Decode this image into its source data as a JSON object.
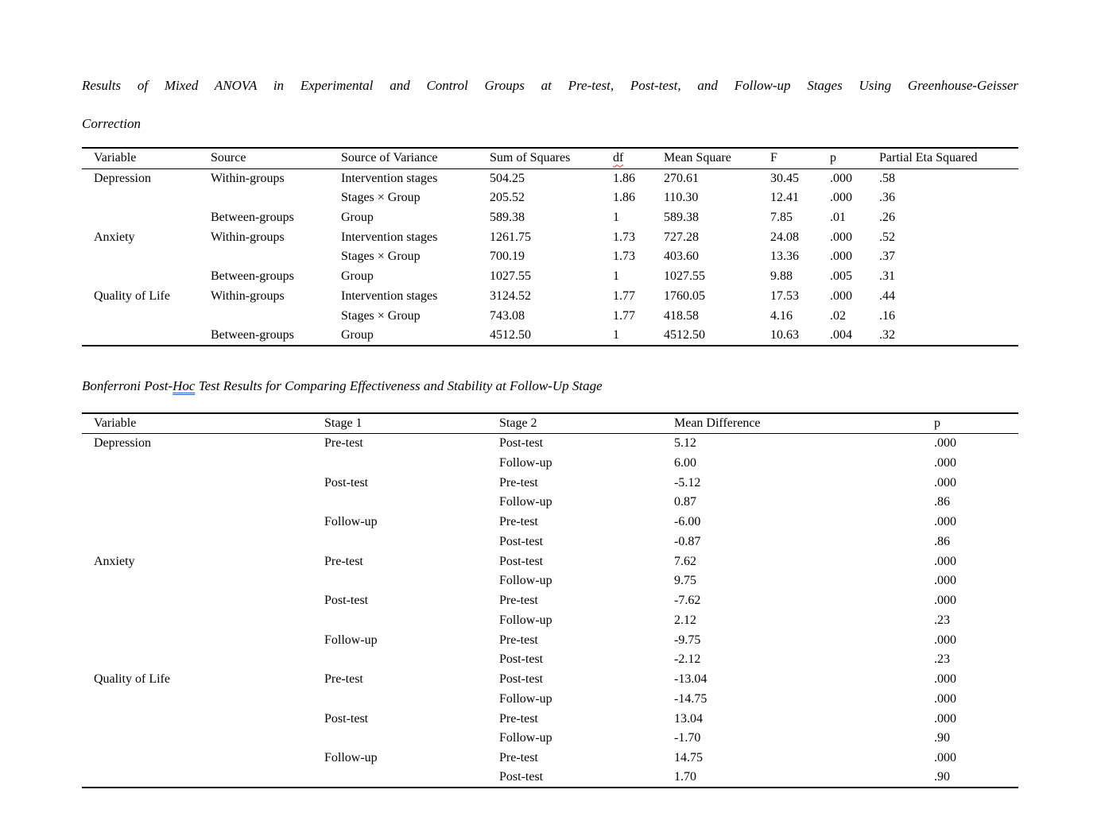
{
  "page": {
    "title_line1": "Results of Mixed ANOVA in Experimental and Control Groups at Pre-test, Post-test, and Follow-up Stages Using Greenhouse-Geisser",
    "title_line2": "Correction"
  },
  "anova_table": {
    "headers": [
      "Variable",
      "Source",
      "Source of Variance",
      "Sum of Squares",
      "df",
      "Mean Square",
      "F",
      "p",
      "Partial Eta Squared"
    ],
    "rows": [
      [
        "Depression",
        "Within-groups",
        "Intervention stages",
        "504.25",
        "1.86",
        "270.61",
        "30.45",
        ".000",
        ".58"
      ],
      [
        "",
        "",
        "Stages × Group",
        "205.52",
        "1.86",
        "110.30",
        "12.41",
        ".000",
        ".36"
      ],
      [
        "",
        "Between-groups",
        "Group",
        "589.38",
        "1",
        "589.38",
        "7.85",
        ".01",
        ".26"
      ],
      [
        "Anxiety",
        "Within-groups",
        "Intervention stages",
        "1261.75",
        "1.73",
        "727.28",
        "24.08",
        ".000",
        ".52"
      ],
      [
        "",
        "",
        "Stages × Group",
        "700.19",
        "1.73",
        "403.60",
        "13.36",
        ".000",
        ".37"
      ],
      [
        "",
        "Between-groups",
        "Group",
        "1027.55",
        "1",
        "1027.55",
        "9.88",
        ".005",
        ".31"
      ],
      [
        "Quality of Life",
        "Within-groups",
        "Intervention stages",
        "3124.52",
        "1.77",
        "1760.05",
        "17.53",
        ".000",
        ".44"
      ],
      [
        "",
        "",
        "Stages × Group",
        "743.08",
        "1.77",
        "418.58",
        "4.16",
        ".02",
        ".16"
      ],
      [
        "",
        "Between-groups",
        "Group",
        "4512.50",
        "1",
        "4512.50",
        "10.63",
        ".004",
        ".32"
      ]
    ]
  },
  "posthoc_title": {
    "prefix": "Bonferroni Post-",
    "underlined_word": "Hoc",
    "suffix": " Test Results for Comparing Effectiveness and Stability at Follow-Up Stage"
  },
  "posthoc_table": {
    "headers": [
      "Variable",
      "Stage 1",
      "Stage 2",
      "Mean Difference",
      "p"
    ],
    "rows": [
      [
        "Depression",
        "Pre-test",
        "Post-test",
        "5.12",
        ".000"
      ],
      [
        "",
        "",
        "Follow-up",
        "6.00",
        ".000"
      ],
      [
        "",
        "Post-test",
        "Pre-test",
        "-5.12",
        ".000"
      ],
      [
        "",
        "",
        "Follow-up",
        "0.87",
        ".86"
      ],
      [
        "",
        "Follow-up",
        "Pre-test",
        "-6.00",
        ".000"
      ],
      [
        "",
        "",
        "Post-test",
        "-0.87",
        ".86"
      ],
      [
        "Anxiety",
        "Pre-test",
        "Post-test",
        "7.62",
        ".000"
      ],
      [
        "",
        "",
        "Follow-up",
        "9.75",
        ".000"
      ],
      [
        "",
        "Post-test",
        "Pre-test",
        "-7.62",
        ".000"
      ],
      [
        "",
        "",
        "Follow-up",
        "2.12",
        ".23"
      ],
      [
        "",
        "Follow-up",
        "Pre-test",
        "-9.75",
        ".000"
      ],
      [
        "",
        "",
        "Post-test",
        "-2.12",
        ".23"
      ],
      [
        "Quality of Life",
        "Pre-test",
        "Post-test",
        "-13.04",
        ".000"
      ],
      [
        "",
        "",
        "Follow-up",
        "-14.75",
        ".000"
      ],
      [
        "",
        "Post-test",
        "Pre-test",
        "13.04",
        ".000"
      ],
      [
        "",
        "",
        "Follow-up",
        "-1.70",
        ".90"
      ],
      [
        "",
        "Follow-up",
        "Pre-test",
        "14.75",
        ".000"
      ],
      [
        "",
        "",
        "Post-test",
        "1.70",
        ".90"
      ]
    ]
  },
  "colors": {
    "spellcheck_red": "#d22d2d",
    "grammar_blue": "#2a64c5",
    "rule_black": "#000000",
    "page_edge_gray": "#cfcfcf"
  }
}
